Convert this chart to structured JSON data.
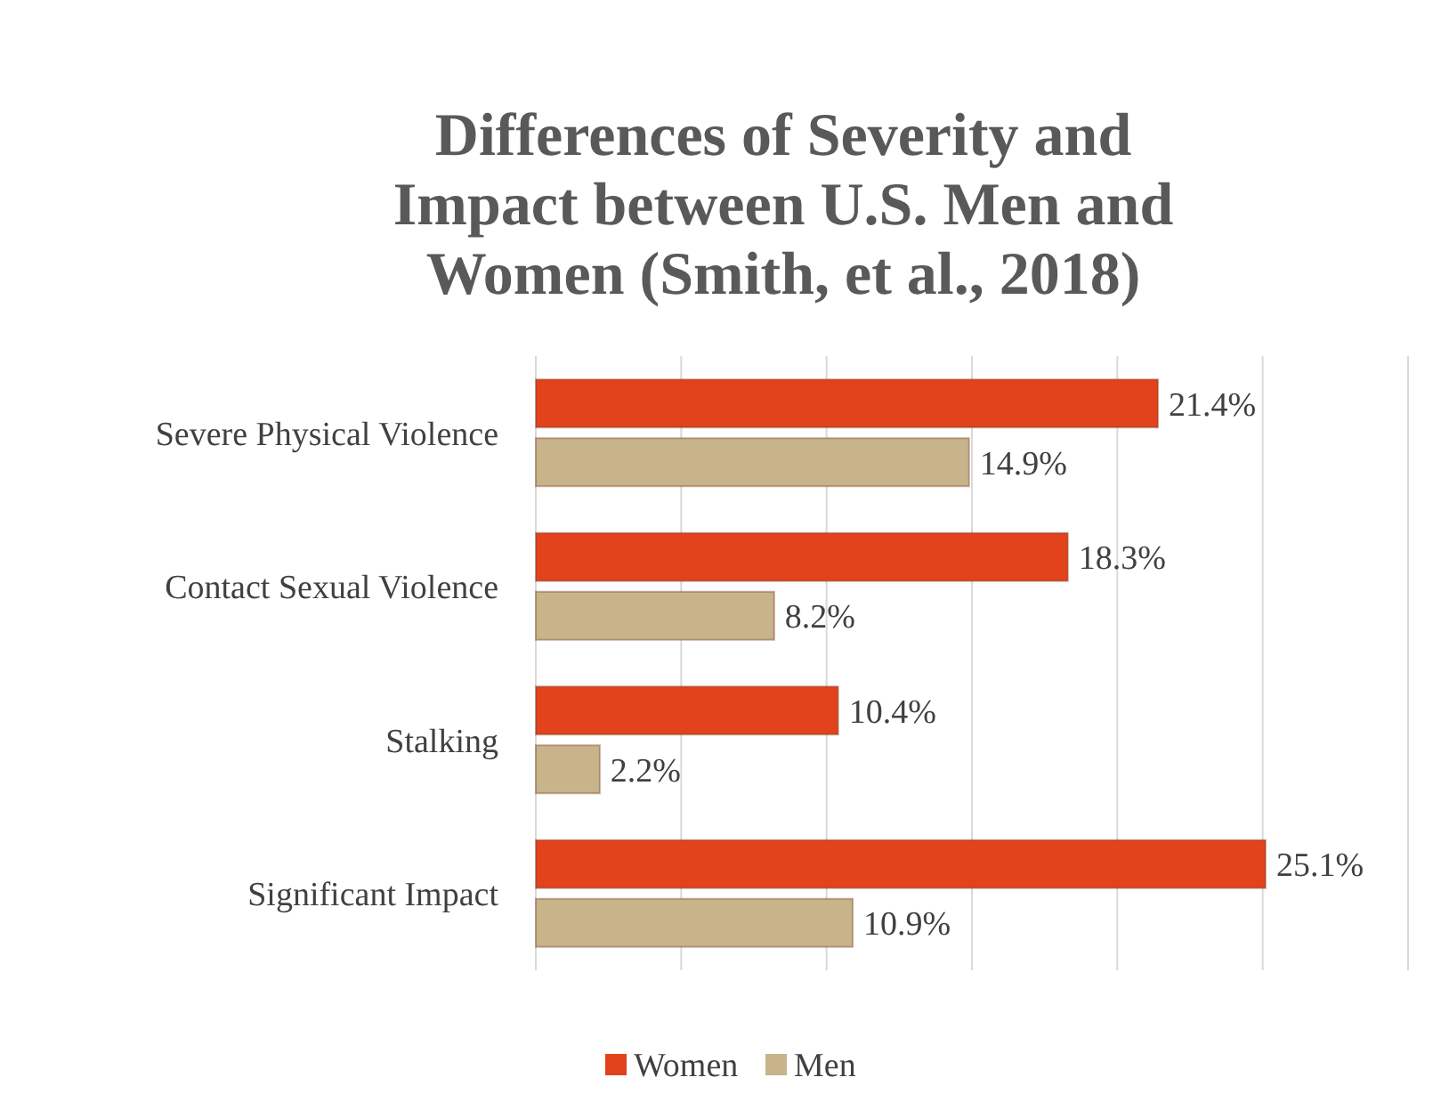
{
  "chart_data": {
    "type": "bar",
    "orientation": "horizontal",
    "title": "Differences of Severity and Impact between U.S. Men and Women (Smith, et al., 2018)",
    "categories": [
      "Severe Physical Violence",
      "Contact Sexual Violence",
      "Stalking",
      "Significant Impact"
    ],
    "series": [
      {
        "name": "Women",
        "color": "#e2431c",
        "values": [
          21.4,
          18.3,
          10.4,
          25.1
        ],
        "value_labels": [
          "21.4%",
          "18.3%",
          "10.4%",
          "25.1%"
        ]
      },
      {
        "name": "Men",
        "color": "#c7b48b",
        "values": [
          14.9,
          8.2,
          2.2,
          10.9
        ],
        "value_labels": [
          "14.9%",
          "8.2%",
          "2.2%",
          "10.9%"
        ]
      }
    ],
    "xlim": [
      0,
      30
    ],
    "xticks": [
      {
        "value": 0,
        "label": null
      },
      {
        "value": 5,
        "label": null
      },
      {
        "value": 10,
        "label": null
      },
      {
        "value": 15,
        "label": null
      },
      {
        "value": 20,
        "label": null
      },
      {
        "value": 25,
        "label": null
      },
      {
        "value": 30,
        "label": null
      }
    ],
    "tick_labels": "y",
    "grid": "x",
    "legend": "bottom"
  }
}
